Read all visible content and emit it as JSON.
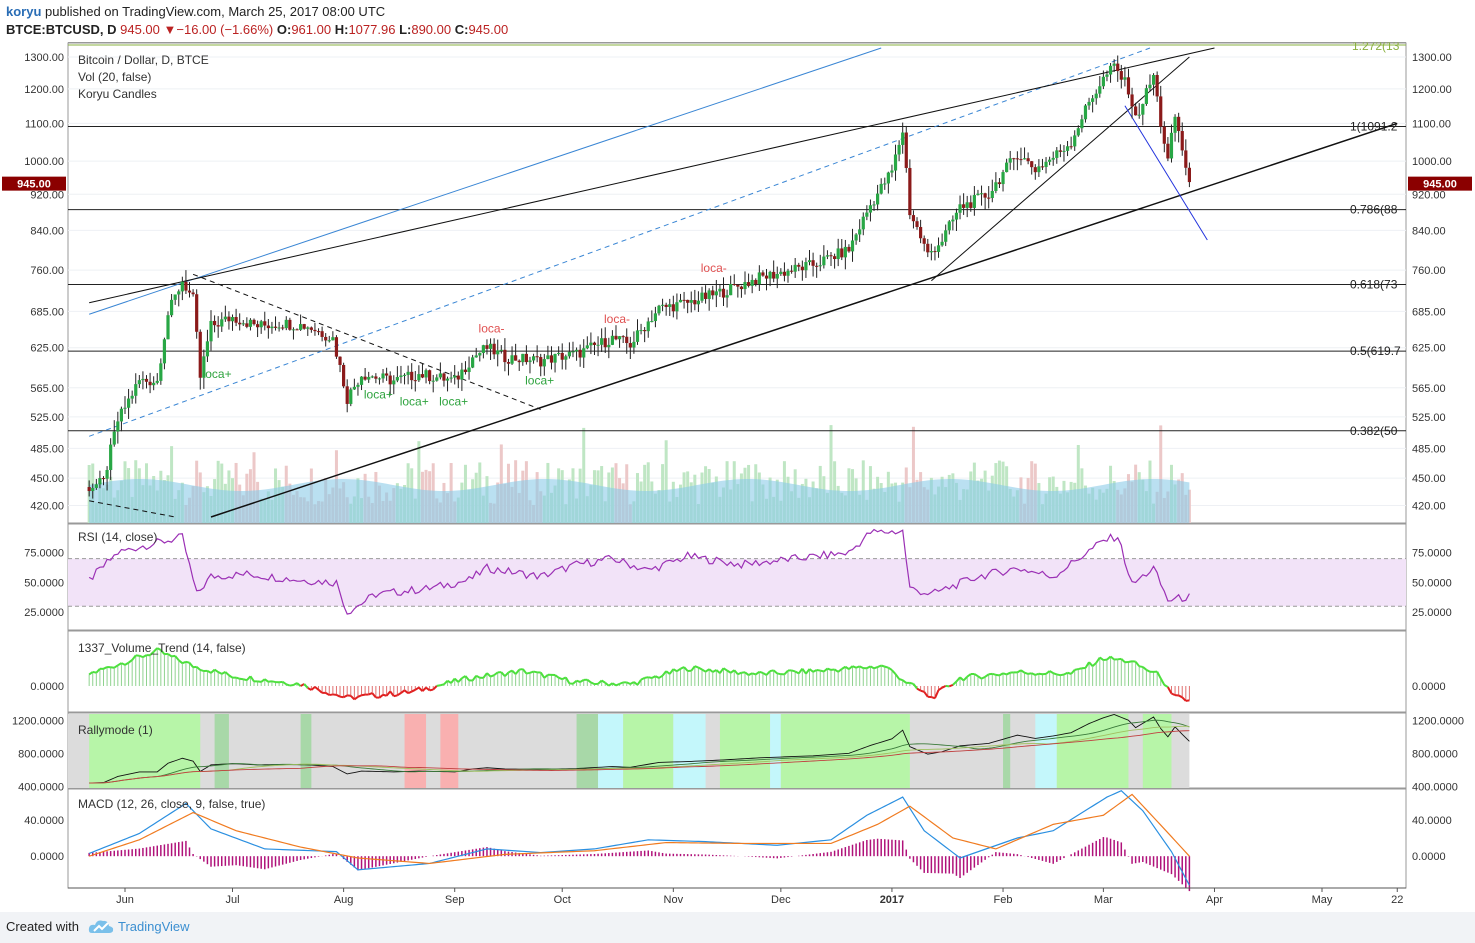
{
  "header": {
    "user": "koryu",
    "published_text": " published on TradingView.com, March 25, 2017 08:00 UTC",
    "symbol": "BTCE:BTCUSD, D",
    "last": "945.00",
    "change_arrow": "▼",
    "change": "−16.00 (−1.66%)",
    "o_label": "O:",
    "o": "961.00",
    "h_label": "H:",
    "h": "1077.96",
    "l_label": "L:",
    "l": "890.00",
    "c_label": "C:",
    "c": "945.00"
  },
  "footer": {
    "created_with": "Created with",
    "brand": "TradingView",
    "logo_icon": "tradingview-cloud-icon"
  },
  "colors": {
    "up": "#28a745",
    "down": "#8b1a1a",
    "rsi": "#9b30b5",
    "macd": "#2a8fe0",
    "signal": "#f07b20",
    "hist": "#b0127a",
    "vol_ma": "#8ccbe8"
  },
  "chart_data": [
    {
      "type": "candlestick",
      "title": "Bitcoin / Dollar, D, BTCE",
      "legend": [
        "Vol (20, false)",
        "Koryu Candles"
      ],
      "y_ticks": [
        "1300.00",
        "1200.00",
        "1100.00",
        "1000.00",
        "920.00",
        "840.00",
        "760.00",
        "685.00",
        "625.00",
        "565.00",
        "525.00",
        "485.00",
        "450.00",
        "420.00"
      ],
      "ylim": [
        408,
        1330
      ],
      "x_ticks": [
        "Jun",
        "Jul",
        "Aug",
        "Sep",
        "Oct",
        "Nov",
        "Dec",
        "2017",
        "Feb",
        "Mar",
        "Apr",
        "May",
        "22"
      ],
      "last_price_label": "945.00",
      "close_path": [
        [
          "2016-05-22",
          440
        ],
        [
          "2016-05-26",
          445
        ],
        [
          "2016-05-30",
          520
        ],
        [
          "2016-06-05",
          575
        ],
        [
          "2016-06-10",
          575
        ],
        [
          "2016-06-13",
          680
        ],
        [
          "2016-06-17",
          740
        ],
        [
          "2016-06-20",
          705
        ],
        [
          "2016-06-22",
          580
        ],
        [
          "2016-06-25",
          660
        ],
        [
          "2016-07-01",
          675
        ],
        [
          "2016-07-08",
          660
        ],
        [
          "2016-07-15",
          665
        ],
        [
          "2016-07-22",
          660
        ],
        [
          "2016-07-29",
          640
        ],
        [
          "2016-08-02",
          550
        ],
        [
          "2016-08-06",
          585
        ],
        [
          "2016-08-15",
          575
        ],
        [
          "2016-08-22",
          585
        ],
        [
          "2016-09-01",
          575
        ],
        [
          "2016-09-06",
          610
        ],
        [
          "2016-09-10",
          625
        ],
        [
          "2016-09-15",
          610
        ],
        [
          "2016-09-25",
          605
        ],
        [
          "2016-10-01",
          612
        ],
        [
          "2016-10-05",
          615
        ],
        [
          "2016-10-15",
          640
        ],
        [
          "2016-10-20",
          630
        ],
        [
          "2016-10-28",
          690
        ],
        [
          "2016-11-05",
          700
        ],
        [
          "2016-11-15",
          720
        ],
        [
          "2016-11-25",
          745
        ],
        [
          "2016-12-01",
          755
        ],
        [
          "2016-12-10",
          770
        ],
        [
          "2016-12-20",
          800
        ],
        [
          "2016-12-26",
          895
        ],
        [
          "2017-01-01",
          975
        ],
        [
          "2017-01-04",
          1080
        ],
        [
          "2017-01-06",
          880
        ],
        [
          "2017-01-11",
          790
        ],
        [
          "2017-01-15",
          820
        ],
        [
          "2017-01-20",
          890
        ],
        [
          "2017-01-28",
          920
        ],
        [
          "2017-02-05",
          1020
        ],
        [
          "2017-02-10",
          980
        ],
        [
          "2017-02-15",
          1010
        ],
        [
          "2017-02-20",
          1050
        ],
        [
          "2017-02-25",
          1160
        ],
        [
          "2017-03-01",
          1230
        ],
        [
          "2017-03-04",
          1270
        ],
        [
          "2017-03-08",
          1200
        ],
        [
          "2017-03-10",
          1110
        ],
        [
          "2017-03-15",
          1240
        ],
        [
          "2017-03-17",
          1100
        ],
        [
          "2017-03-19",
          1000
        ],
        [
          "2017-03-21",
          1120
        ],
        [
          "2017-03-23",
          1030
        ],
        [
          "2017-03-25",
          945
        ]
      ],
      "fib_levels": [
        {
          "label": "1(1091.2",
          "value": 1091.2
        },
        {
          "label": "0.786(88",
          "value": 885
        },
        {
          "label": "0.618(73",
          "value": 733
        },
        {
          "label": "0.5(619.7",
          "value": 619.7
        },
        {
          "label": "0.382(50",
          "value": 507
        }
      ],
      "fib_top_label": "1.272(13",
      "annotations": [
        {
          "text": "loca+",
          "date": "2016-06-26",
          "price": 600,
          "color": "green"
        },
        {
          "text": "loca+",
          "date": "2016-08-10",
          "price": 570,
          "color": "green"
        },
        {
          "text": "loca+",
          "date": "2016-08-20",
          "price": 560,
          "color": "green"
        },
        {
          "text": "loca+",
          "date": "2016-08-31",
          "price": 560,
          "color": "green"
        },
        {
          "text": "loca+",
          "date": "2016-09-24",
          "price": 590,
          "color": "green"
        },
        {
          "text": "loca-",
          "date": "2016-09-11",
          "price": 640,
          "color": "red"
        },
        {
          "text": "loca-",
          "date": "2016-10-16",
          "price": 655,
          "color": "red"
        },
        {
          "text": "loca-",
          "date": "2016-11-12",
          "price": 745,
          "color": "red"
        }
      ]
    },
    {
      "type": "line",
      "title": "RSI (14, close)",
      "y_ticks": [
        "75.0000",
        "50.0000",
        "25.0000"
      ],
      "ylim": [
        10,
        100
      ],
      "band": [
        30,
        70
      ],
      "values": [
        [
          "2016-05-22",
          52
        ],
        [
          "2016-05-30",
          75
        ],
        [
          "2016-06-05",
          80
        ],
        [
          "2016-06-17",
          88
        ],
        [
          "2016-06-21",
          40
        ],
        [
          "2016-06-25",
          55
        ],
        [
          "2016-07-05",
          57
        ],
        [
          "2016-07-20",
          52
        ],
        [
          "2016-07-30",
          50
        ],
        [
          "2016-08-02",
          25
        ],
        [
          "2016-08-10",
          40
        ],
        [
          "2016-08-25",
          45
        ],
        [
          "2016-09-05",
          52
        ],
        [
          "2016-09-10",
          62
        ],
        [
          "2016-09-25",
          55
        ],
        [
          "2016-10-05",
          65
        ],
        [
          "2016-10-15",
          70
        ],
        [
          "2016-10-25",
          60
        ],
        [
          "2016-11-05",
          72
        ],
        [
          "2016-11-20",
          65
        ],
        [
          "2016-12-05",
          70
        ],
        [
          "2016-12-20",
          75
        ],
        [
          "2016-12-26",
          92
        ],
        [
          "2017-01-04",
          93
        ],
        [
          "2017-01-06",
          45
        ],
        [
          "2017-01-12",
          40
        ],
        [
          "2017-01-25",
          55
        ],
        [
          "2017-02-05",
          62
        ],
        [
          "2017-02-15",
          55
        ],
        [
          "2017-03-01",
          85
        ],
        [
          "2017-03-05",
          89
        ],
        [
          "2017-03-09",
          48
        ],
        [
          "2017-03-15",
          62
        ],
        [
          "2017-03-19",
          35
        ],
        [
          "2017-03-25",
          38
        ]
      ]
    },
    {
      "type": "bar",
      "title": "1337_Volume_Trend (14, false)",
      "y_ticks": [
        "0.0000"
      ],
      "values": [
        [
          "2016-05-22",
          12
        ],
        [
          "2016-06-10",
          35
        ],
        [
          "2016-06-20",
          20
        ],
        [
          "2016-07-01",
          10
        ],
        [
          "2016-07-20",
          2
        ],
        [
          "2016-08-02",
          -12
        ],
        [
          "2016-08-20",
          -6
        ],
        [
          "2016-09-05",
          8
        ],
        [
          "2016-09-20",
          15
        ],
        [
          "2016-10-05",
          4
        ],
        [
          "2016-10-20",
          2
        ],
        [
          "2016-11-05",
          18
        ],
        [
          "2016-11-25",
          12
        ],
        [
          "2016-12-10",
          15
        ],
        [
          "2016-12-30",
          20
        ],
        [
          "2017-01-05",
          4
        ],
        [
          "2017-01-12",
          -12
        ],
        [
          "2017-01-20",
          8
        ],
        [
          "2017-02-05",
          14
        ],
        [
          "2017-02-20",
          12
        ],
        [
          "2017-03-01",
          28
        ],
        [
          "2017-03-08",
          25
        ],
        [
          "2017-03-17",
          10
        ],
        [
          "2017-03-20",
          -10
        ],
        [
          "2017-03-25",
          -15
        ]
      ]
    },
    {
      "type": "line",
      "title": "Rallymode (1)",
      "y_ticks": [
        "1200.0000",
        "800.0000",
        "400.0000"
      ],
      "ylim": [
        380,
        1300
      ]
    },
    {
      "type": "line",
      "title": "MACD (12, 26, close, 9, false, true)",
      "y_ticks": [
        "40.0000",
        "0.0000"
      ],
      "ylim": [
        -35,
        75
      ],
      "series": [
        {
          "name": "MACD",
          "values": [
            [
              "2016-05-22",
              3
            ],
            [
              "2016-06-05",
              25
            ],
            [
              "2016-06-18",
              58
            ],
            [
              "2016-06-25",
              30
            ],
            [
              "2016-07-10",
              8
            ],
            [
              "2016-07-30",
              5
            ],
            [
              "2016-08-05",
              -15
            ],
            [
              "2016-08-25",
              -8
            ],
            [
              "2016-09-10",
              8
            ],
            [
              "2016-09-25",
              4
            ],
            [
              "2016-10-10",
              8
            ],
            [
              "2016-10-25",
              18
            ],
            [
              "2016-11-10",
              16
            ],
            [
              "2016-11-30",
              12
            ],
            [
              "2016-12-15",
              18
            ],
            [
              "2016-12-25",
              45
            ],
            [
              "2017-01-04",
              65
            ],
            [
              "2017-01-10",
              28
            ],
            [
              "2017-01-20",
              -2
            ],
            [
              "2017-02-05",
              20
            ],
            [
              "2017-02-15",
              28
            ],
            [
              "2017-03-02",
              65
            ],
            [
              "2017-03-06",
              72
            ],
            [
              "2017-03-12",
              50
            ],
            [
              "2017-03-20",
              5
            ],
            [
              "2017-03-25",
              -32
            ]
          ]
        },
        {
          "name": "Signal",
          "values": [
            [
              "2016-05-22",
              0
            ],
            [
              "2016-06-05",
              18
            ],
            [
              "2016-06-20",
              48
            ],
            [
              "2016-07-02",
              28
            ],
            [
              "2016-07-20",
              10
            ],
            [
              "2016-08-05",
              -2
            ],
            [
              "2016-08-25",
              -8
            ],
            [
              "2016-09-15",
              2
            ],
            [
              "2016-10-10",
              6
            ],
            [
              "2016-10-30",
              15
            ],
            [
              "2016-11-20",
              14
            ],
            [
              "2016-12-15",
              14
            ],
            [
              "2016-12-28",
              35
            ],
            [
              "2017-01-06",
              55
            ],
            [
              "2017-01-18",
              20
            ],
            [
              "2017-01-30",
              8
            ],
            [
              "2017-02-15",
              35
            ],
            [
              "2017-03-01",
              45
            ],
            [
              "2017-03-09",
              68
            ],
            [
              "2017-03-18",
              30
            ],
            [
              "2017-03-25",
              0
            ]
          ]
        }
      ]
    }
  ]
}
